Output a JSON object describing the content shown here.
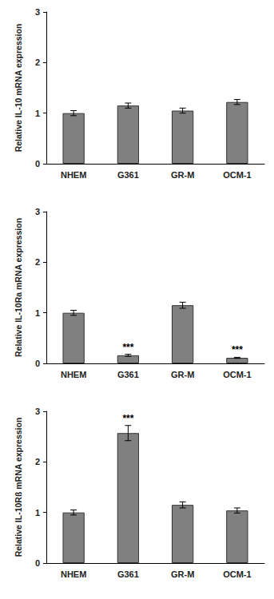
{
  "chart_data": [
    {
      "type": "bar",
      "y_label": "Relative IL-10 mRNA expression",
      "categories": [
        "NHEM",
        "G361",
        "GR-M",
        "OCM-1"
      ],
      "values": [
        1.0,
        1.15,
        1.05,
        1.22
      ],
      "errors": [
        0.05,
        0.05,
        0.05,
        0.05
      ],
      "color": "#808080",
      "ylim": [
        0,
        3
      ],
      "yticks": [
        0,
        1,
        2,
        3
      ],
      "grid": false,
      "annotations": []
    },
    {
      "type": "bar",
      "y_label": "Relative IL-10Ra mRNA expression",
      "categories": [
        "NHEM",
        "G361",
        "GR-M",
        "OCM-1"
      ],
      "values": [
        1.0,
        0.16,
        1.15,
        0.11
      ],
      "errors": [
        0.05,
        0.02,
        0.06,
        0.01
      ],
      "color": "#808080",
      "ylim": [
        0,
        3
      ],
      "yticks": [
        0,
        1,
        2,
        3
      ],
      "grid": false,
      "annotations": [
        {
          "category": "G361",
          "text": "***"
        },
        {
          "category": "OCM-1",
          "text": "***"
        }
      ]
    },
    {
      "type": "bar",
      "y_label": "Relative IL-10Rß mRNA expression",
      "categories": [
        "NHEM",
        "G361",
        "GR-M",
        "OCM-1"
      ],
      "values": [
        1.0,
        2.57,
        1.15,
        1.04
      ],
      "errors": [
        0.05,
        0.15,
        0.06,
        0.05
      ],
      "color": "#808080",
      "ylim": [
        0,
        3
      ],
      "yticks": [
        0,
        1,
        2,
        3
      ],
      "grid": false,
      "annotations": [
        {
          "category": "G361",
          "text": "***"
        }
      ]
    }
  ]
}
